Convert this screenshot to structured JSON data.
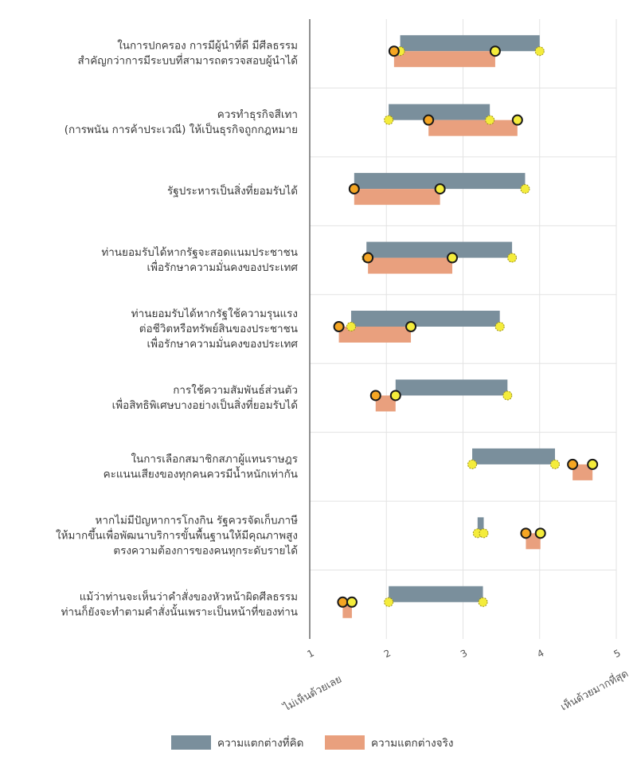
{
  "chart_data": {
    "type": "range-dot",
    "title": "",
    "xlim": [
      1,
      5
    ],
    "ticks": [
      1,
      2,
      3,
      4,
      5
    ],
    "x_end_labels": {
      "left": "ไม่เห็นด้วยเลย",
      "right": "เห็นด้วยมากที่สุด"
    },
    "series": [
      {
        "name": "ความแตกต่างที่คิด",
        "color": "#7a8f9c"
      },
      {
        "name": "ความแตกต่างจริง",
        "color": "#e9a07e"
      }
    ],
    "rows": [
      {
        "label": [
          "ในการปกครอง การมีผู้นำที่ดี มีศีลธรรม",
          "สำคัญกว่าการมีระบบที่สามารถตรวจสอบผู้นำได้"
        ],
        "perceived": [
          2.18,
          4.0
        ],
        "actual": [
          2.1,
          3.42
        ]
      },
      {
        "label": [
          "ควรทำธุรกิจสีเทา",
          "(การพนัน การค้าประเวณี) ให้เป็นธุรกิจถูกกฎหมาย"
        ],
        "perceived": [
          2.03,
          3.35
        ],
        "actual": [
          2.55,
          3.71
        ]
      },
      {
        "label": [
          "รัฐประหารเป็นสิ่งที่ยอมรับได้"
        ],
        "perceived": [
          1.58,
          3.81
        ],
        "actual": [
          1.58,
          2.7
        ]
      },
      {
        "label": [
          "ท่านยอมรับได้หากรัฐจะสอดแนมประชาชน",
          "เพื่อรักษาความมั่นคงของประเทศ"
        ],
        "perceived": [
          1.74,
          3.64
        ],
        "actual": [
          1.76,
          2.86
        ]
      },
      {
        "label": [
          "ท่านยอมรับได้หากรัฐใช้ความรุนแรง",
          "ต่อชีวิตหรือทรัพย์สินของประชาชน",
          "เพื่อรักษาความมั่นคงของประเทศ"
        ],
        "perceived": [
          1.54,
          3.48
        ],
        "actual": [
          1.38,
          2.32
        ]
      },
      {
        "label": [
          "การใช้ความสัมพันธ์ส่วนตัว",
          "เพื่อสิทธิพิเศษบางอย่างเป็นสิ่งที่ยอมรับได้"
        ],
        "perceived": [
          2.12,
          3.58
        ],
        "actual": [
          1.86,
          2.12
        ]
      },
      {
        "label": [
          "ในการเลือกสมาชิกสภาผู้แทนราษฎร",
          "คะแนนเสียงของทุกคนควรมีน้ำหนักเท่ากัน"
        ],
        "perceived": [
          3.12,
          4.2
        ],
        "actual": [
          4.43,
          4.69
        ]
      },
      {
        "label": [
          "หากไม่มีปัญหาการโกงกิน รัฐควรจัดเก็บภาษี",
          "ให้มากขึ้นเพื่อพัฒนาบริการขั้นพื้นฐานให้มีคุณภาพสูง",
          "ตรงความต้องการของคนทุกระดับรายได้"
        ],
        "perceived": [
          3.19,
          3.27
        ],
        "actual": [
          3.82,
          4.01
        ]
      },
      {
        "label": [
          "แม้ว่าท่านจะเห็นว่าคำสั่งของหัวหน้าผิดศีลธรรม",
          "ท่านก็ยังจะทำตามคำสั่งนั้นเพราะเป็นหน้าที่ของท่าน"
        ],
        "perceived": [
          2.03,
          3.26
        ],
        "actual": [
          1.43,
          1.55
        ]
      }
    ]
  }
}
